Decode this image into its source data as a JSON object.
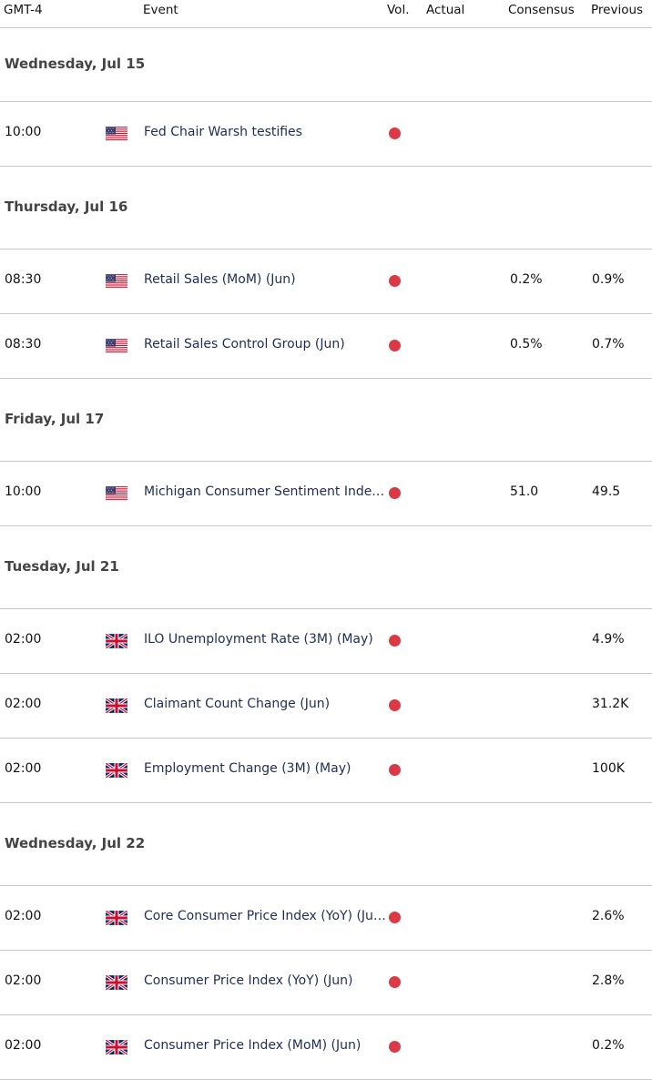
{
  "header": {
    "timezone": "GMT-4",
    "event": "Event",
    "vol": "Vol.",
    "actual": "Actual",
    "consensus": "Consensus",
    "previous": "Previous"
  },
  "colors": {
    "volatility_dot": "#db3a45",
    "event_text": "#1f2d55",
    "divider": "#c8c8c8"
  },
  "days": [
    {
      "label": "Wednesday, Jul 15",
      "events": [
        {
          "time": "10:00",
          "flag": "us-flag-icon",
          "name": "Fed Chair Warsh testifies",
          "actual": "",
          "consensus": "",
          "previous": ""
        }
      ]
    },
    {
      "label": "Thursday, Jul 16",
      "events": [
        {
          "time": "08:30",
          "flag": "us-flag-icon",
          "name": "Retail Sales (MoM) (Jun)",
          "actual": "",
          "consensus": "0.2%",
          "previous": "0.9%"
        },
        {
          "time": "08:30",
          "flag": "us-flag-icon",
          "name": "Retail Sales Control Group (Jun)",
          "actual": "",
          "consensus": "0.5%",
          "previous": "0.7%"
        }
      ]
    },
    {
      "label": "Friday, Jul 17",
      "events": [
        {
          "time": "10:00",
          "flag": "us-flag-icon",
          "name": "Michigan Consumer Sentiment Index…",
          "actual": "",
          "consensus": "51.0",
          "previous": "49.5"
        }
      ]
    },
    {
      "label": "Tuesday, Jul 21",
      "events": [
        {
          "time": "02:00",
          "flag": "uk-flag-icon",
          "name": "ILO Unemployment Rate (3M) (May)",
          "actual": "",
          "consensus": "",
          "previous": "4.9%"
        },
        {
          "time": "02:00",
          "flag": "uk-flag-icon",
          "name": "Claimant Count Change (Jun)",
          "actual": "",
          "consensus": "",
          "previous": "31.2K"
        },
        {
          "time": "02:00",
          "flag": "uk-flag-icon",
          "name": "Employment Change (3M) (May)",
          "actual": "",
          "consensus": "",
          "previous": "100K"
        }
      ]
    },
    {
      "label": "Wednesday, Jul 22",
      "events": [
        {
          "time": "02:00",
          "flag": "uk-flag-icon",
          "name": "Core Consumer Price Index (YoY) (Ju…",
          "actual": "",
          "consensus": "",
          "previous": "2.6%"
        },
        {
          "time": "02:00",
          "flag": "uk-flag-icon",
          "name": "Consumer Price Index (YoY) (Jun)",
          "actual": "",
          "consensus": "",
          "previous": "2.8%"
        },
        {
          "time": "02:00",
          "flag": "uk-flag-icon",
          "name": "Consumer Price Index (MoM) (Jun)",
          "actual": "",
          "consensus": "",
          "previous": "0.2%"
        }
      ]
    }
  ]
}
